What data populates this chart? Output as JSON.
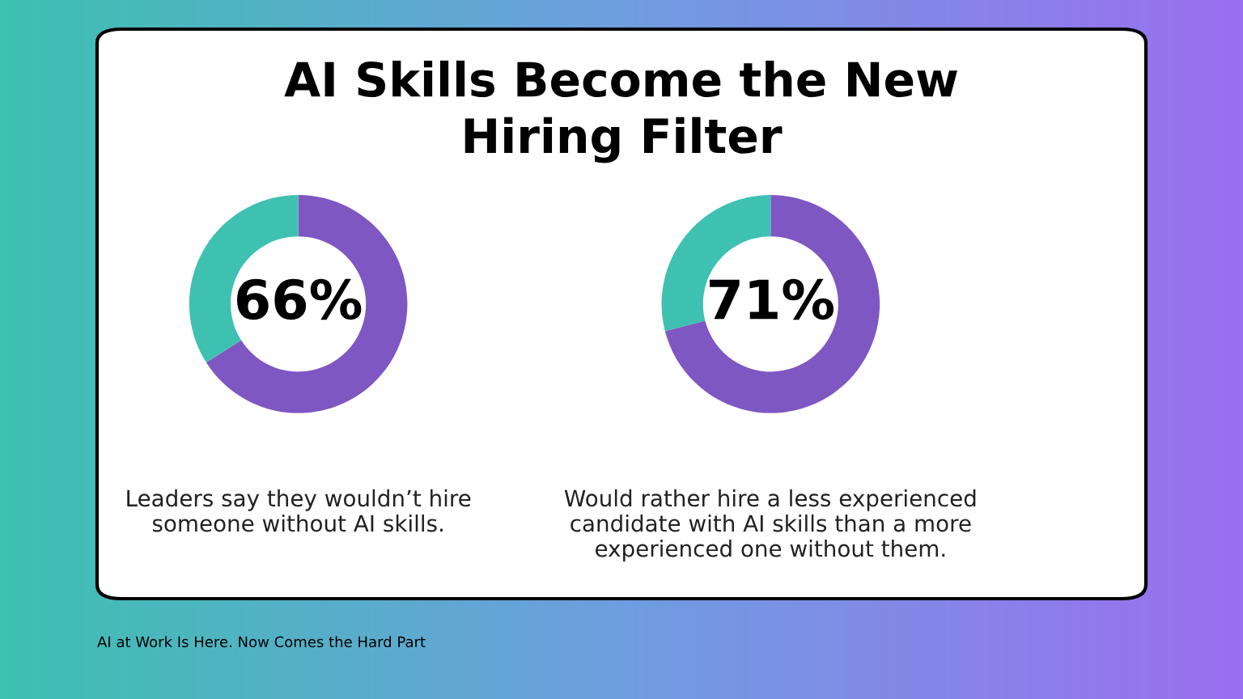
{
  "chart_data": [
    {
      "type": "donut",
      "title": "AI Skills Become the New Hiring Filter",
      "categories": [
        null,
        null
      ],
      "values": [
        66,
        34
      ],
      "colors": [
        "#7e57c2",
        "#3ec1b1"
      ],
      "value_labels": [
        "66%",
        null
      ],
      "annotations": [
        "Leaders say they wouldn’t hire someone without AI skills."
      ]
    },
    {
      "type": "donut",
      "categories": [
        null,
        null
      ],
      "values": [
        71,
        29
      ],
      "colors": [
        "#7e57c2",
        "#3ec1b1"
      ],
      "value_labels": [
        "71%",
        null
      ],
      "annotations": [
        "Would rather hire a less experienced candidate with AI skills than a more experienced one without them.",
        "AI at Work Is Here. Now Comes the Hard Part"
      ]
    }
  ]
}
